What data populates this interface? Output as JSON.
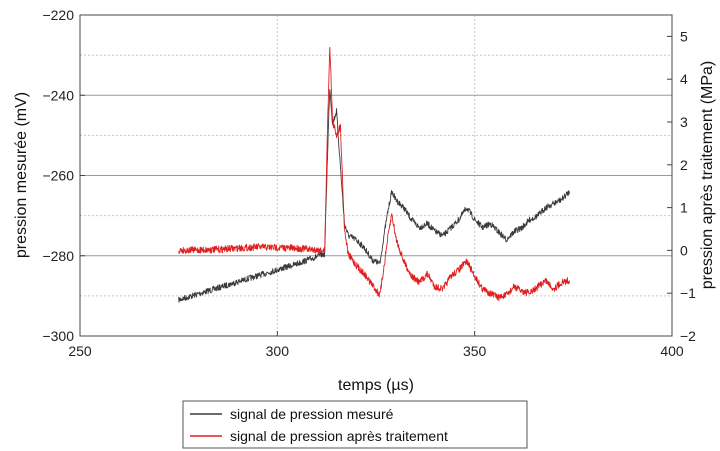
{
  "chart_data": {
    "type": "line",
    "xlabel": "temps (µs)",
    "ylabel_left": "pression mesurée (mV)",
    "ylabel_right": "pression après traitement (MPa)",
    "xlim": [
      250,
      400
    ],
    "ylim_left": [
      -300,
      -220
    ],
    "ylim_right": [
      -2,
      5.5
    ],
    "x_ticks": [
      250,
      300,
      350,
      400
    ],
    "y_ticks_left": [
      -300,
      -280,
      -260,
      -240,
      -220
    ],
    "y_ticks_right": [
      -2,
      -1,
      0,
      1,
      2,
      3,
      4,
      5
    ],
    "grid": true,
    "legend_position": "bottom-center",
    "series": [
      {
        "name": "signal de pression mesuré",
        "axis": "left",
        "color": "#3a3a3a",
        "x": [
          275,
          285,
          295,
          305,
          312,
          312.8,
          313.3,
          314,
          315,
          316,
          317,
          318,
          320,
          322,
          324,
          326,
          327,
          328,
          329,
          330,
          332,
          334,
          336,
          338,
          340,
          342,
          344,
          346,
          348,
          350,
          352,
          354,
          356,
          358,
          360,
          362,
          364,
          366,
          368,
          370,
          372,
          374
        ],
        "y": [
          -291,
          -288,
          -285,
          -282,
          -279.5,
          -252,
          -238,
          -247,
          -244,
          -258,
          -272,
          -275,
          -276,
          -278,
          -281,
          -282,
          -275,
          -269,
          -264,
          -266,
          -268,
          -271,
          -273,
          -272,
          -274,
          -275,
          -273,
          -271,
          -268,
          -271,
          -273,
          -272,
          -274,
          -276,
          -274,
          -273,
          -271,
          -270,
          -268,
          -267,
          -266,
          -264
        ]
      },
      {
        "name": "signal de pression après traitement",
        "axis": "right",
        "color": "#e02020",
        "x": [
          275,
          285,
          295,
          305,
          312,
          312.8,
          313.3,
          314,
          315,
          316,
          317,
          318,
          320,
          322,
          324,
          326,
          327,
          328,
          329,
          330,
          332,
          334,
          336,
          338,
          340,
          342,
          344,
          346,
          348,
          350,
          352,
          354,
          356,
          358,
          360,
          362,
          364,
          366,
          368,
          370,
          372,
          374
        ],
        "y": [
          0,
          0.02,
          0.08,
          0.05,
          0,
          3.2,
          4.8,
          3.0,
          2.7,
          2.9,
          0.5,
          -0.1,
          -0.35,
          -0.55,
          -0.8,
          -1.05,
          -0.4,
          0.3,
          0.85,
          0.3,
          -0.25,
          -0.6,
          -0.75,
          -0.55,
          -0.85,
          -0.9,
          -0.6,
          -0.45,
          -0.25,
          -0.6,
          -0.9,
          -1.0,
          -1.1,
          -1.05,
          -0.85,
          -0.95,
          -1.0,
          -0.85,
          -0.7,
          -0.9,
          -0.75,
          -0.7
        ]
      }
    ]
  }
}
